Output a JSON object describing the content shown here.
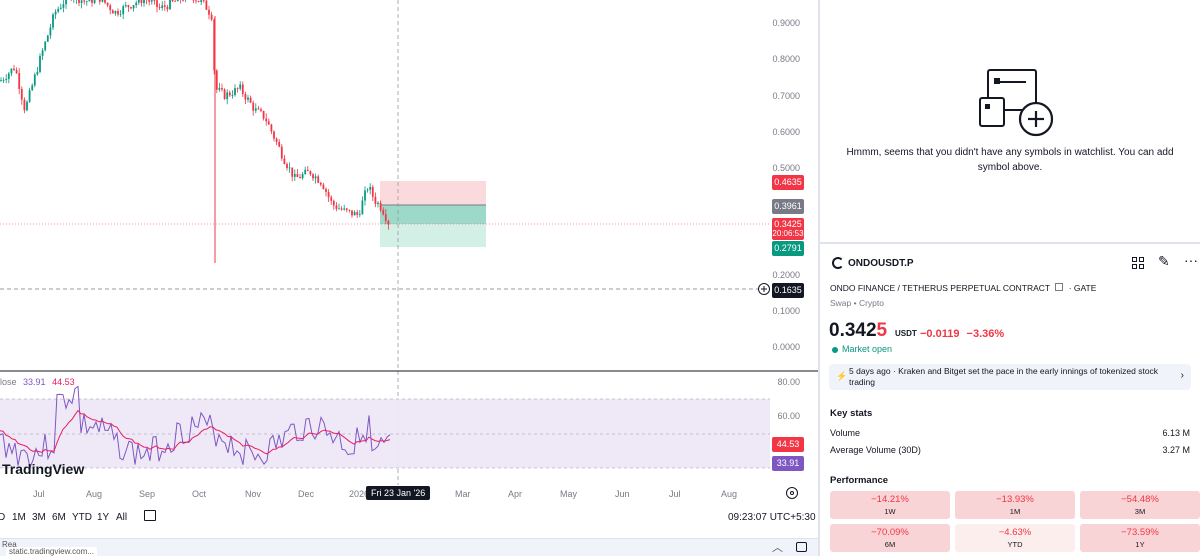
{
  "chart": {
    "price_axis": [
      "0.9000",
      "0.8000",
      "0.7000",
      "0.6000",
      "0.5000",
      "0.2000",
      "0.1000",
      "0.0000"
    ],
    "tags": {
      "target": "0.4635",
      "entry": "0.3961",
      "last_price": "0.3425",
      "countdown": "20:06:53",
      "stop": "0.2791",
      "crosshair": "0.1635"
    },
    "tag_colors": {
      "target": "#f23645",
      "entry": "#787b86",
      "last": "#f23645",
      "stop": "#089981",
      "crosshair": "#131722"
    },
    "rsi": {
      "legend_prefix": "lose",
      "val1": "33.91",
      "val2": "44.53",
      "axis": [
        "80.00",
        "60.00"
      ],
      "tag_ma": "44.53",
      "tag_rsi": "33.91"
    },
    "time_axis": [
      "Jul",
      "Aug",
      "Sep",
      "Oct",
      "Nov",
      "Dec",
      "2026",
      "Mar",
      "Apr",
      "May",
      "Jun",
      "Jul",
      "Aug"
    ],
    "crosshair_date": "Fri 23 Jan '26",
    "watermark": "TradingView"
  },
  "toolbar": {
    "ranges": [
      "D",
      "1M",
      "3M",
      "6M",
      "YTD",
      "1Y",
      "All"
    ],
    "time": "09:23:07 UTC+5:30"
  },
  "status_bar": {
    "url": "static.tradingview.com...",
    "left_text": "Rea"
  },
  "watchlist": {
    "empty_message": "Hmmm, seems that you didn't have any symbols in watchlist. You can add symbol above."
  },
  "symbol": {
    "name": "ONDOUSDT.P",
    "description": "ONDO FINANCE / TETHERUS PERPETUAL CONTRACT",
    "exchange": "· GATE",
    "type": "Swap • Crypto",
    "price_main": "0.342",
    "price_last_digit": "5",
    "unit": "USDT",
    "change": "−0.0119",
    "change_pct": "−3.36%",
    "market_status": "Market open",
    "news_time": "5 days ago",
    "news_text": "· Kraken and Bitget set the pace in the early innings of tokenized stock trading"
  },
  "key_stats": {
    "title": "Key stats",
    "rows": [
      {
        "label": "Volume",
        "value": "6.13 M"
      },
      {
        "label": "Average Volume (30D)",
        "value": "3.27 M"
      }
    ]
  },
  "performance": {
    "title": "Performance",
    "cells": [
      {
        "value": "−14.21%",
        "period": "1W"
      },
      {
        "value": "−13.93%",
        "period": "1M"
      },
      {
        "value": "−54.48%",
        "period": "3M"
      },
      {
        "value": "−70.09%",
        "period": "6M"
      },
      {
        "value": "−4.63%",
        "period": "YTD"
      },
      {
        "value": "−73.59%",
        "period": "1Y"
      }
    ]
  }
}
